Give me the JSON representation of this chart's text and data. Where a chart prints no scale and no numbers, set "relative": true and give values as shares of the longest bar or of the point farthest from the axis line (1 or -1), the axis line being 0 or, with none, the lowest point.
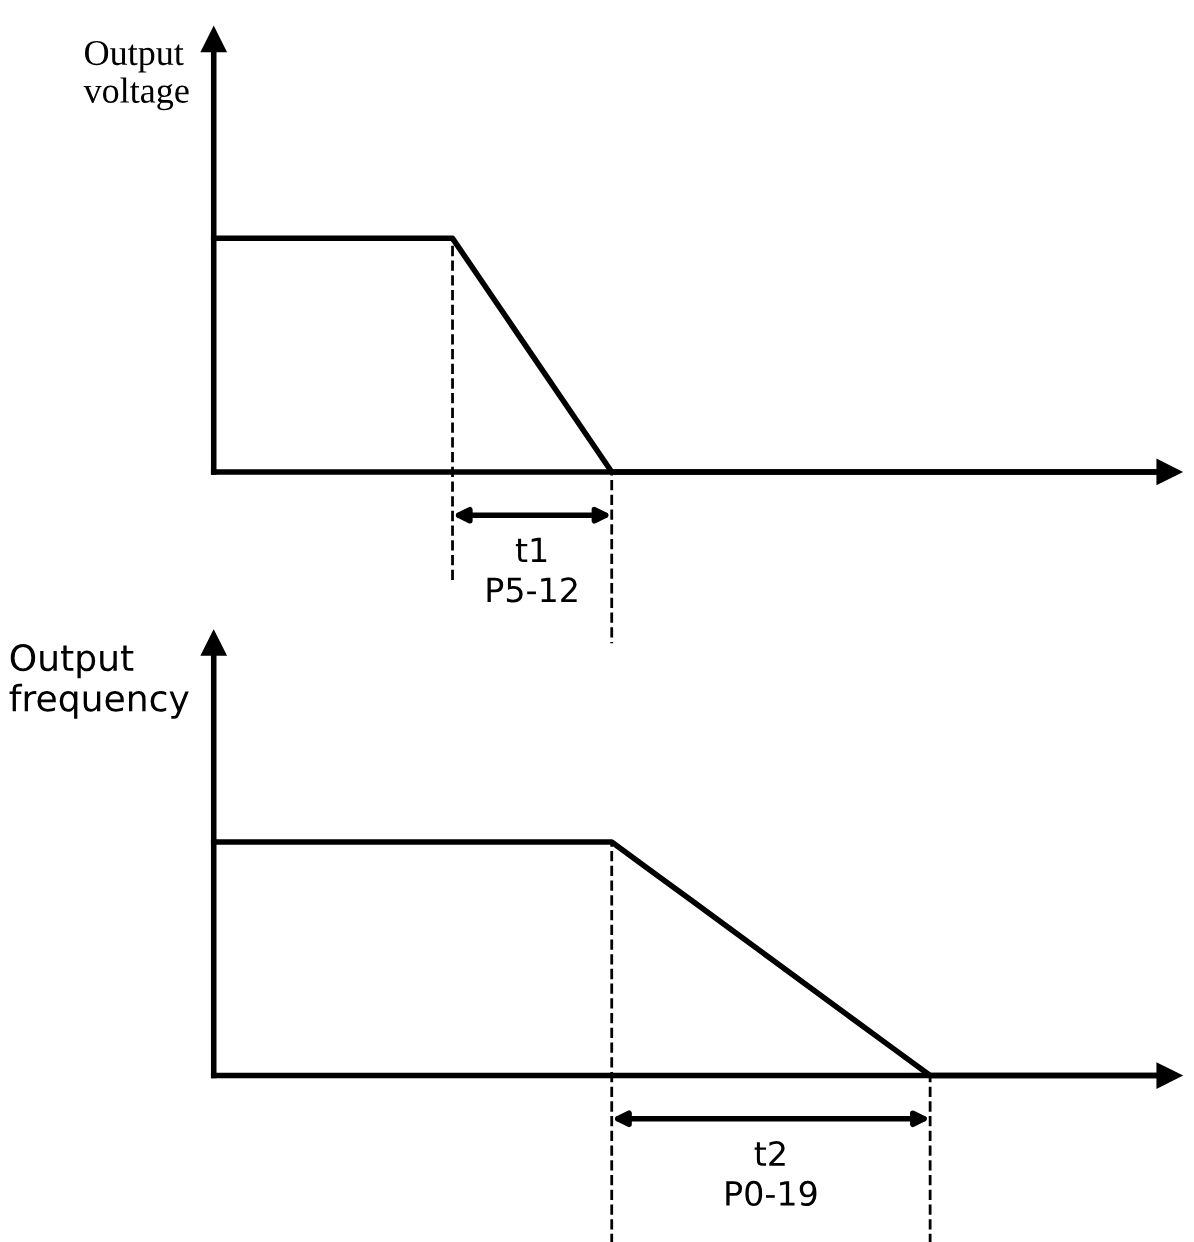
{
  "chart_data": [
    {
      "type": "line",
      "relative": true,
      "ylabel": "Output\nvoltage",
      "tick_labels": false,
      "marker": "none",
      "line_style": "solid",
      "categories": [
        null,
        null,
        null,
        null,
        null,
        null,
        null,
        null,
        null,
        null,
        null,
        null,
        null,
        null,
        null,
        null,
        null,
        null,
        null,
        null,
        null,
        null,
        null,
        null,
        null
      ],
      "series": [
        {
          "color": "#000000",
          "values": [
            1,
            1,
            1,
            1,
            1,
            1,
            1,
            0.75,
            0.5,
            0.25,
            0,
            0,
            0,
            0,
            0,
            0,
            0,
            0,
            0,
            0,
            0,
            0,
            0,
            0,
            0
          ]
        }
      ],
      "annotations": [
        "t1\nP5-12"
      ]
    },
    {
      "type": "line",
      "relative": true,
      "ylabel": "Output\nfrequency",
      "tick_labels": false,
      "marker": "none",
      "line_style": "solid",
      "categories": [
        null,
        null,
        null,
        null,
        null,
        null,
        null,
        null,
        null,
        null,
        null,
        null,
        null,
        null,
        null,
        null,
        null,
        null,
        null,
        null,
        null,
        null,
        null,
        null,
        null
      ],
      "series": [
        {
          "color": "#000000",
          "values": [
            1,
            1,
            1,
            1,
            1,
            1,
            1,
            1,
            1,
            1,
            1,
            0.875,
            0.75,
            0.625,
            0.5,
            0.375,
            0.25,
            0.125,
            0,
            0,
            0,
            0,
            0,
            0,
            0
          ]
        }
      ],
      "annotations": [
        "t2\nP0-19"
      ]
    }
  ]
}
